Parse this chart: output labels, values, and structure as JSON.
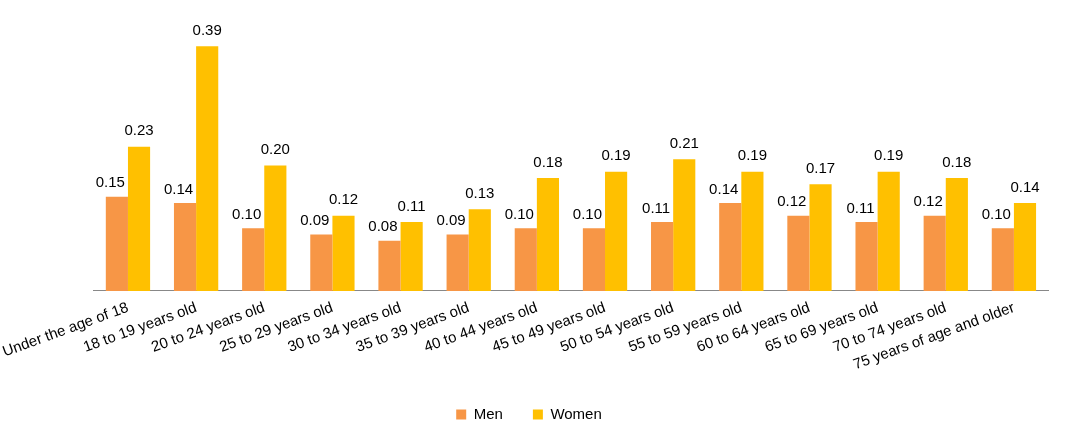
{
  "chart_data": {
    "type": "bar",
    "categories": [
      "Under the age of 18",
      "18 to 19 years old",
      "20 to 24 years old",
      "25 to 29 years old",
      "30 to 34 years old",
      "35 to 39 years old",
      "40 to 44 years old",
      "45 to 49 years old",
      "50 to 54 years old",
      "55 to 59 years old",
      "60 to 64 years old",
      "65 to 69 years old",
      "70 to 74 years old",
      "75 years of age and older"
    ],
    "series": [
      {
        "name": "Men",
        "color": "#f79646",
        "values": [
          0.15,
          0.14,
          0.1,
          0.09,
          0.08,
          0.09,
          0.1,
          0.1,
          0.11,
          0.14,
          0.12,
          0.11,
          0.12,
          0.1
        ],
        "value_labels": [
          "0.15",
          "0.14",
          "0.10",
          "0.09",
          "0.08",
          "0.09",
          "0.10",
          "0.10",
          "0.11",
          "0.14",
          "0.12",
          "0.11",
          "0.12",
          "0.10"
        ]
      },
      {
        "name": "Women",
        "color": "#ffc000",
        "values": [
          0.23,
          0.39,
          0.2,
          0.12,
          0.11,
          0.13,
          0.18,
          0.19,
          0.21,
          0.19,
          0.17,
          0.19,
          0.18,
          0.14
        ],
        "value_labels": [
          "0.23",
          "0.39",
          "0.20",
          "0.12",
          "0.11",
          "0.13",
          "0.18",
          "0.19",
          "0.21",
          "0.19",
          "0.17",
          "0.19",
          "0.18",
          "0.14"
        ]
      }
    ],
    "legend": "bottom",
    "grid": false
  }
}
